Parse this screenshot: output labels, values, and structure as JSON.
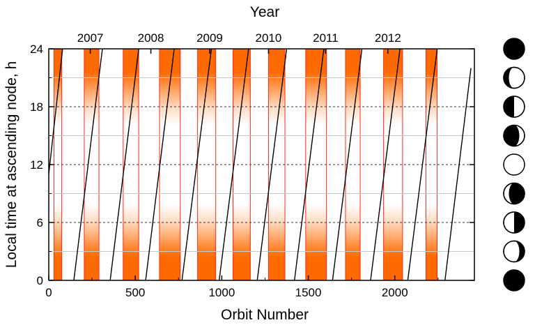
{
  "chart_data": {
    "type": "line",
    "title": "",
    "xlabel": "Orbit Number",
    "ylabel": "Local time at ascending node, h",
    "top_axis_label": "Year",
    "xlim": [
      0,
      2460
    ],
    "ylim": [
      0,
      24
    ],
    "x_ticks": [
      0,
      500,
      1000,
      1500,
      2000
    ],
    "y_ticks": [
      0,
      6,
      12,
      18,
      24
    ],
    "dashed_gridlines_y": [
      6,
      12,
      18
    ],
    "solid_gridlines_y": [
      3,
      9,
      15,
      21
    ],
    "years": [
      {
        "label": "2007",
        "x": 240
      },
      {
        "label": "2008",
        "x": 590
      },
      {
        "label": "2009",
        "x": 930
      },
      {
        "label": "2010",
        "x": 1270
      },
      {
        "label": "2011",
        "x": 1600
      },
      {
        "label": "2012",
        "x": 1960
      }
    ],
    "shaded_bands": [
      {
        "x_start": 30,
        "x_end": 75
      },
      {
        "x_start": 205,
        "x_end": 290
      },
      {
        "x_start": 430,
        "x_end": 520
      },
      {
        "x_start": 640,
        "x_end": 760
      },
      {
        "x_start": 860,
        "x_end": 965
      },
      {
        "x_start": 1065,
        "x_end": 1165
      },
      {
        "x_start": 1270,
        "x_end": 1365
      },
      {
        "x_start": 1485,
        "x_end": 1605
      },
      {
        "x_start": 1715,
        "x_end": 1800
      },
      {
        "x_start": 1935,
        "x_end": 2045
      },
      {
        "x_start": 2180,
        "x_end": 2245
      }
    ],
    "series": [
      {
        "segments": [
          {
            "x": [
              0,
              80
            ],
            "y": [
              11,
              24
            ]
          },
          {
            "x": [
              145,
              310
            ],
            "y": [
              0,
              24
            ]
          },
          {
            "x": [
              355,
              520
            ],
            "y": [
              0,
              24
            ]
          },
          {
            "x": [
              560,
              725
            ],
            "y": [
              0,
              24
            ]
          },
          {
            "x": [
              770,
              940
            ],
            "y": [
              0,
              24
            ]
          },
          {
            "x": [
              985,
              1155
            ],
            "y": [
              0,
              24
            ]
          },
          {
            "x": [
              1205,
              1375
            ],
            "y": [
              0,
              24
            ]
          },
          {
            "x": [
              1420,
              1590
            ],
            "y": [
              0,
              24
            ]
          },
          {
            "x": [
              1640,
              1810
            ],
            "y": [
              0,
              24
            ]
          },
          {
            "x": [
              1860,
              2030
            ],
            "y": [
              0,
              24
            ]
          },
          {
            "x": [
              2075,
              2245
            ],
            "y": [
              0,
              24
            ]
          },
          {
            "x": [
              2290,
              2440
            ],
            "y": [
              0,
              22
            ]
          }
        ]
      }
    ],
    "moon_phases": [
      {
        "name": "new-moon-icon",
        "illumination": 0
      },
      {
        "name": "waxing-crescent-moon-icon",
        "illumination": 0.25
      },
      {
        "name": "first-quarter-moon-icon",
        "illumination": 0.5
      },
      {
        "name": "waxing-gibbous-moon-icon",
        "illumination": 0.75
      },
      {
        "name": "full-moon-icon",
        "illumination": 1
      },
      {
        "name": "waning-gibbous-moon-icon",
        "illumination": 0.75
      },
      {
        "name": "last-quarter-moon-icon",
        "illumination": 0.5
      },
      {
        "name": "waning-crescent-moon-icon",
        "illumination": 0.25
      },
      {
        "name": "new-moon-icon",
        "illumination": 0
      }
    ],
    "colors": {
      "band": "#ff6a00",
      "band_edge": "#ff2a1a",
      "line": "#000000",
      "grid": "#888888"
    }
  }
}
